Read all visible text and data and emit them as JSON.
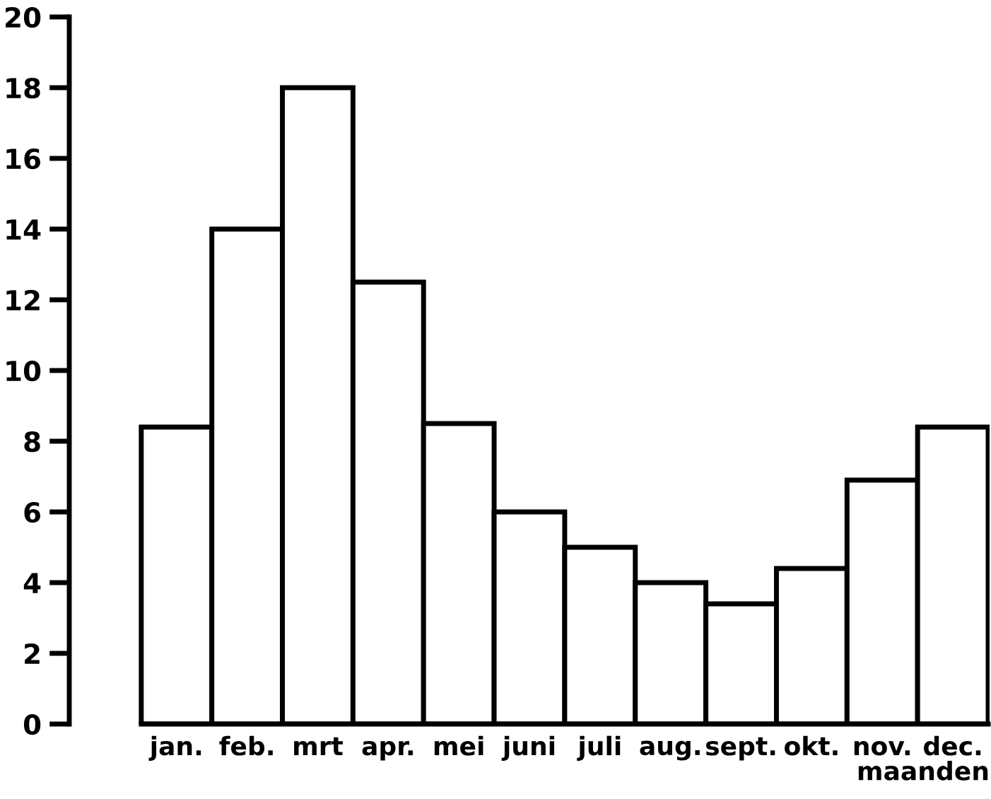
{
  "chart_data": {
    "type": "bar",
    "categories": [
      "jan.",
      "feb.",
      "mrt",
      "apr.",
      "mei",
      "juni",
      "juli",
      "aug.",
      "sept.",
      "okt.",
      "nov.",
      "dec."
    ],
    "values": [
      8.4,
      14,
      18,
      12.5,
      8.5,
      6,
      5,
      4,
      3.4,
      4.4,
      6.9,
      8.4
    ],
    "color": "#ffffff",
    "xlabel": "maanden",
    "ylim": [
      0,
      20
    ],
    "yticks": [
      0,
      2,
      4,
      6,
      8,
      10,
      12,
      14,
      16,
      18,
      20
    ],
    "grid": false,
    "legend": false
  }
}
